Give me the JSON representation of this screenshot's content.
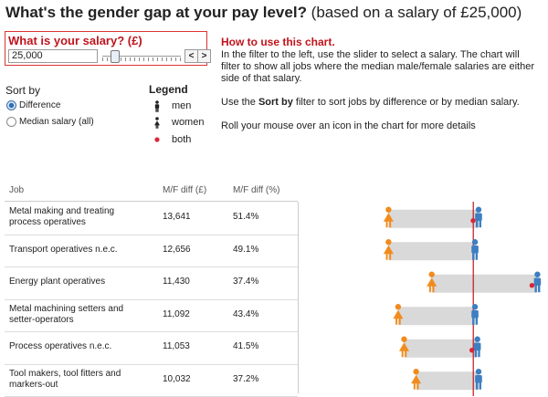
{
  "header": {
    "title_bold": "What's the gender gap at your pay level?",
    "title_rest": " (based on a salary of £25,000)"
  },
  "salary": {
    "label": "What is your salary? (£)",
    "value": "25,000",
    "slider_fraction": 0.12,
    "prev_label": "<",
    "next_label": ">"
  },
  "sort": {
    "label": "Sort by",
    "options": [
      {
        "label": "Difference",
        "selected": true
      },
      {
        "label": "Median salary (all)",
        "selected": false
      }
    ]
  },
  "legend": {
    "title": "Legend",
    "items": [
      {
        "label": "men",
        "icon": "man-icon"
      },
      {
        "label": "women",
        "icon": "woman-icon"
      },
      {
        "label": "both",
        "icon": "dot-icon"
      }
    ]
  },
  "instructions": {
    "heading": "How to use this chart.",
    "p1": "In the filter to the left, use the slider to select a salary. The chart will filter to show all jobs where the median male/female salaries are either side of that salary.",
    "p2_pre": "Use the ",
    "p2_bold": "Sort by",
    "p2_post": " filter to sort jobs by difference or by median salary.",
    "p3": "Roll your mouse over an icon in the chart for more details"
  },
  "table": {
    "columns": [
      "Job",
      "M/F diff (£)",
      "M/F diff (%)"
    ],
    "rows": [
      {
        "job_line1": "Metal making and treating",
        "job_line2": "process operatives",
        "diff": "13,641",
        "pct": "51.4%",
        "women_x": 0.355,
        "men_x": 0.73,
        "dot": true
      },
      {
        "job_line1": "Transport operatives n.e.c.",
        "job_line2": "",
        "diff": "12,656",
        "pct": "49.1%",
        "women_x": 0.355,
        "men_x": 0.715,
        "dot": false
      },
      {
        "job_line1": "Energy plant operatives",
        "job_line2": "",
        "diff": "11,430",
        "pct": "37.4%",
        "women_x": 0.535,
        "men_x": 0.975,
        "dot": true
      },
      {
        "job_line1": "Metal machining setters and",
        "job_line2": "setter-operators",
        "diff": "11,092",
        "pct": "43.4%",
        "women_x": 0.395,
        "men_x": 0.715,
        "dot": false
      },
      {
        "job_line1": "Process operatives n.e.c.",
        "job_line2": "",
        "diff": "11,053",
        "pct": "41.5%",
        "women_x": 0.42,
        "men_x": 0.725,
        "dot": true
      },
      {
        "job_line1": "Tool makers, tool fitters and",
        "job_line2": "markers-out",
        "diff": "10,032",
        "pct": "37.2%",
        "women_x": 0.47,
        "men_x": 0.73,
        "dot": false
      }
    ],
    "reference_line_x": 0.708
  },
  "colors": {
    "women": "#f08c1e",
    "men": "#3d7fc1",
    "both_dot": "#d9273a",
    "range_bar": "#d9d9d9",
    "reference_line": "#c0141c",
    "accent": "#c0141c"
  }
}
